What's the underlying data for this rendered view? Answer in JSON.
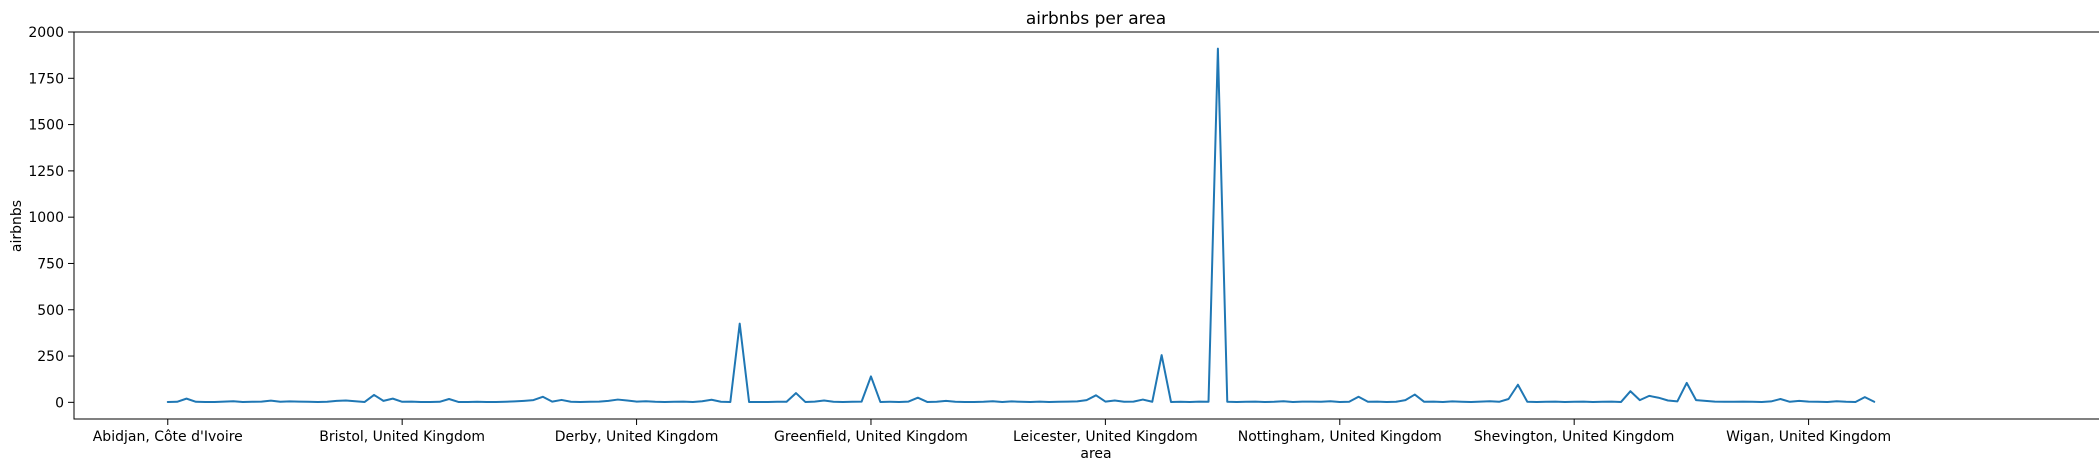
{
  "chart_data": {
    "type": "line",
    "title": "airbnbs per area",
    "xlabel": "area",
    "ylabel": "airbnbs",
    "ylim": [
      -90,
      2000
    ],
    "xlim": [
      -10,
      208
    ],
    "y_ticks": [
      0,
      250,
      500,
      750,
      1000,
      1250,
      1500,
      1750,
      2000
    ],
    "x_ticks": [
      {
        "index": 0,
        "label": "Abidjan, Côte d'Ivoire"
      },
      {
        "index": 25,
        "label": "Bristol, United Kingdom"
      },
      {
        "index": 50,
        "label": "Derby, United Kingdom"
      },
      {
        "index": 75,
        "label": "Greenfield, United Kingdom"
      },
      {
        "index": 100,
        "label": "Leicester, United Kingdom"
      },
      {
        "index": 125,
        "label": "Nottingham, United Kingdom"
      },
      {
        "index": 150,
        "label": "Shevington, United Kingdom"
      },
      {
        "index": 175,
        "label": "Wigan, United Kingdom"
      }
    ],
    "grid": false,
    "colors": {
      "line": "#1f77b4"
    },
    "series": [
      {
        "name": "airbnbs",
        "values": [
          2,
          3,
          20,
          3,
          2,
          2,
          4,
          6,
          2,
          3,
          4,
          9,
          3,
          5,
          4,
          3,
          2,
          3,
          8,
          10,
          6,
          2,
          40,
          8,
          20,
          3,
          4,
          2,
          2,
          3,
          18,
          2,
          2,
          3,
          2,
          2,
          3,
          5,
          8,
          12,
          30,
          4,
          13,
          3,
          2,
          3,
          4,
          8,
          15,
          10,
          4,
          6,
          3,
          2,
          3,
          4,
          2,
          6,
          14,
          3,
          2,
          425,
          2,
          2,
          2,
          3,
          3,
          50,
          2,
          4,
          10,
          3,
          2,
          3,
          4,
          140,
          2,
          3,
          2,
          4,
          25,
          2,
          3,
          8,
          3,
          2,
          2,
          3,
          6,
          2,
          5,
          3,
          2,
          4,
          2,
          3,
          4,
          5,
          12,
          38,
          4,
          10,
          3,
          4,
          15,
          3,
          255,
          2,
          3,
          2,
          4,
          3,
          1910,
          3,
          2,
          3,
          4,
          2,
          3,
          6,
          2,
          4,
          4,
          3,
          6,
          2,
          3,
          30,
          3,
          4,
          2,
          3,
          12,
          42,
          3,
          4,
          2,
          5,
          3,
          2,
          4,
          6,
          3,
          18,
          95,
          3,
          2,
          3,
          4,
          2,
          3,
          4,
          2,
          3,
          4,
          2,
          60,
          12,
          35,
          25,
          10,
          5,
          105,
          12,
          8,
          4,
          3,
          3,
          4,
          3,
          2,
          5,
          18,
          3,
          8,
          4,
          3,
          2,
          6,
          3,
          2,
          28,
          3
        ]
      }
    ]
  }
}
